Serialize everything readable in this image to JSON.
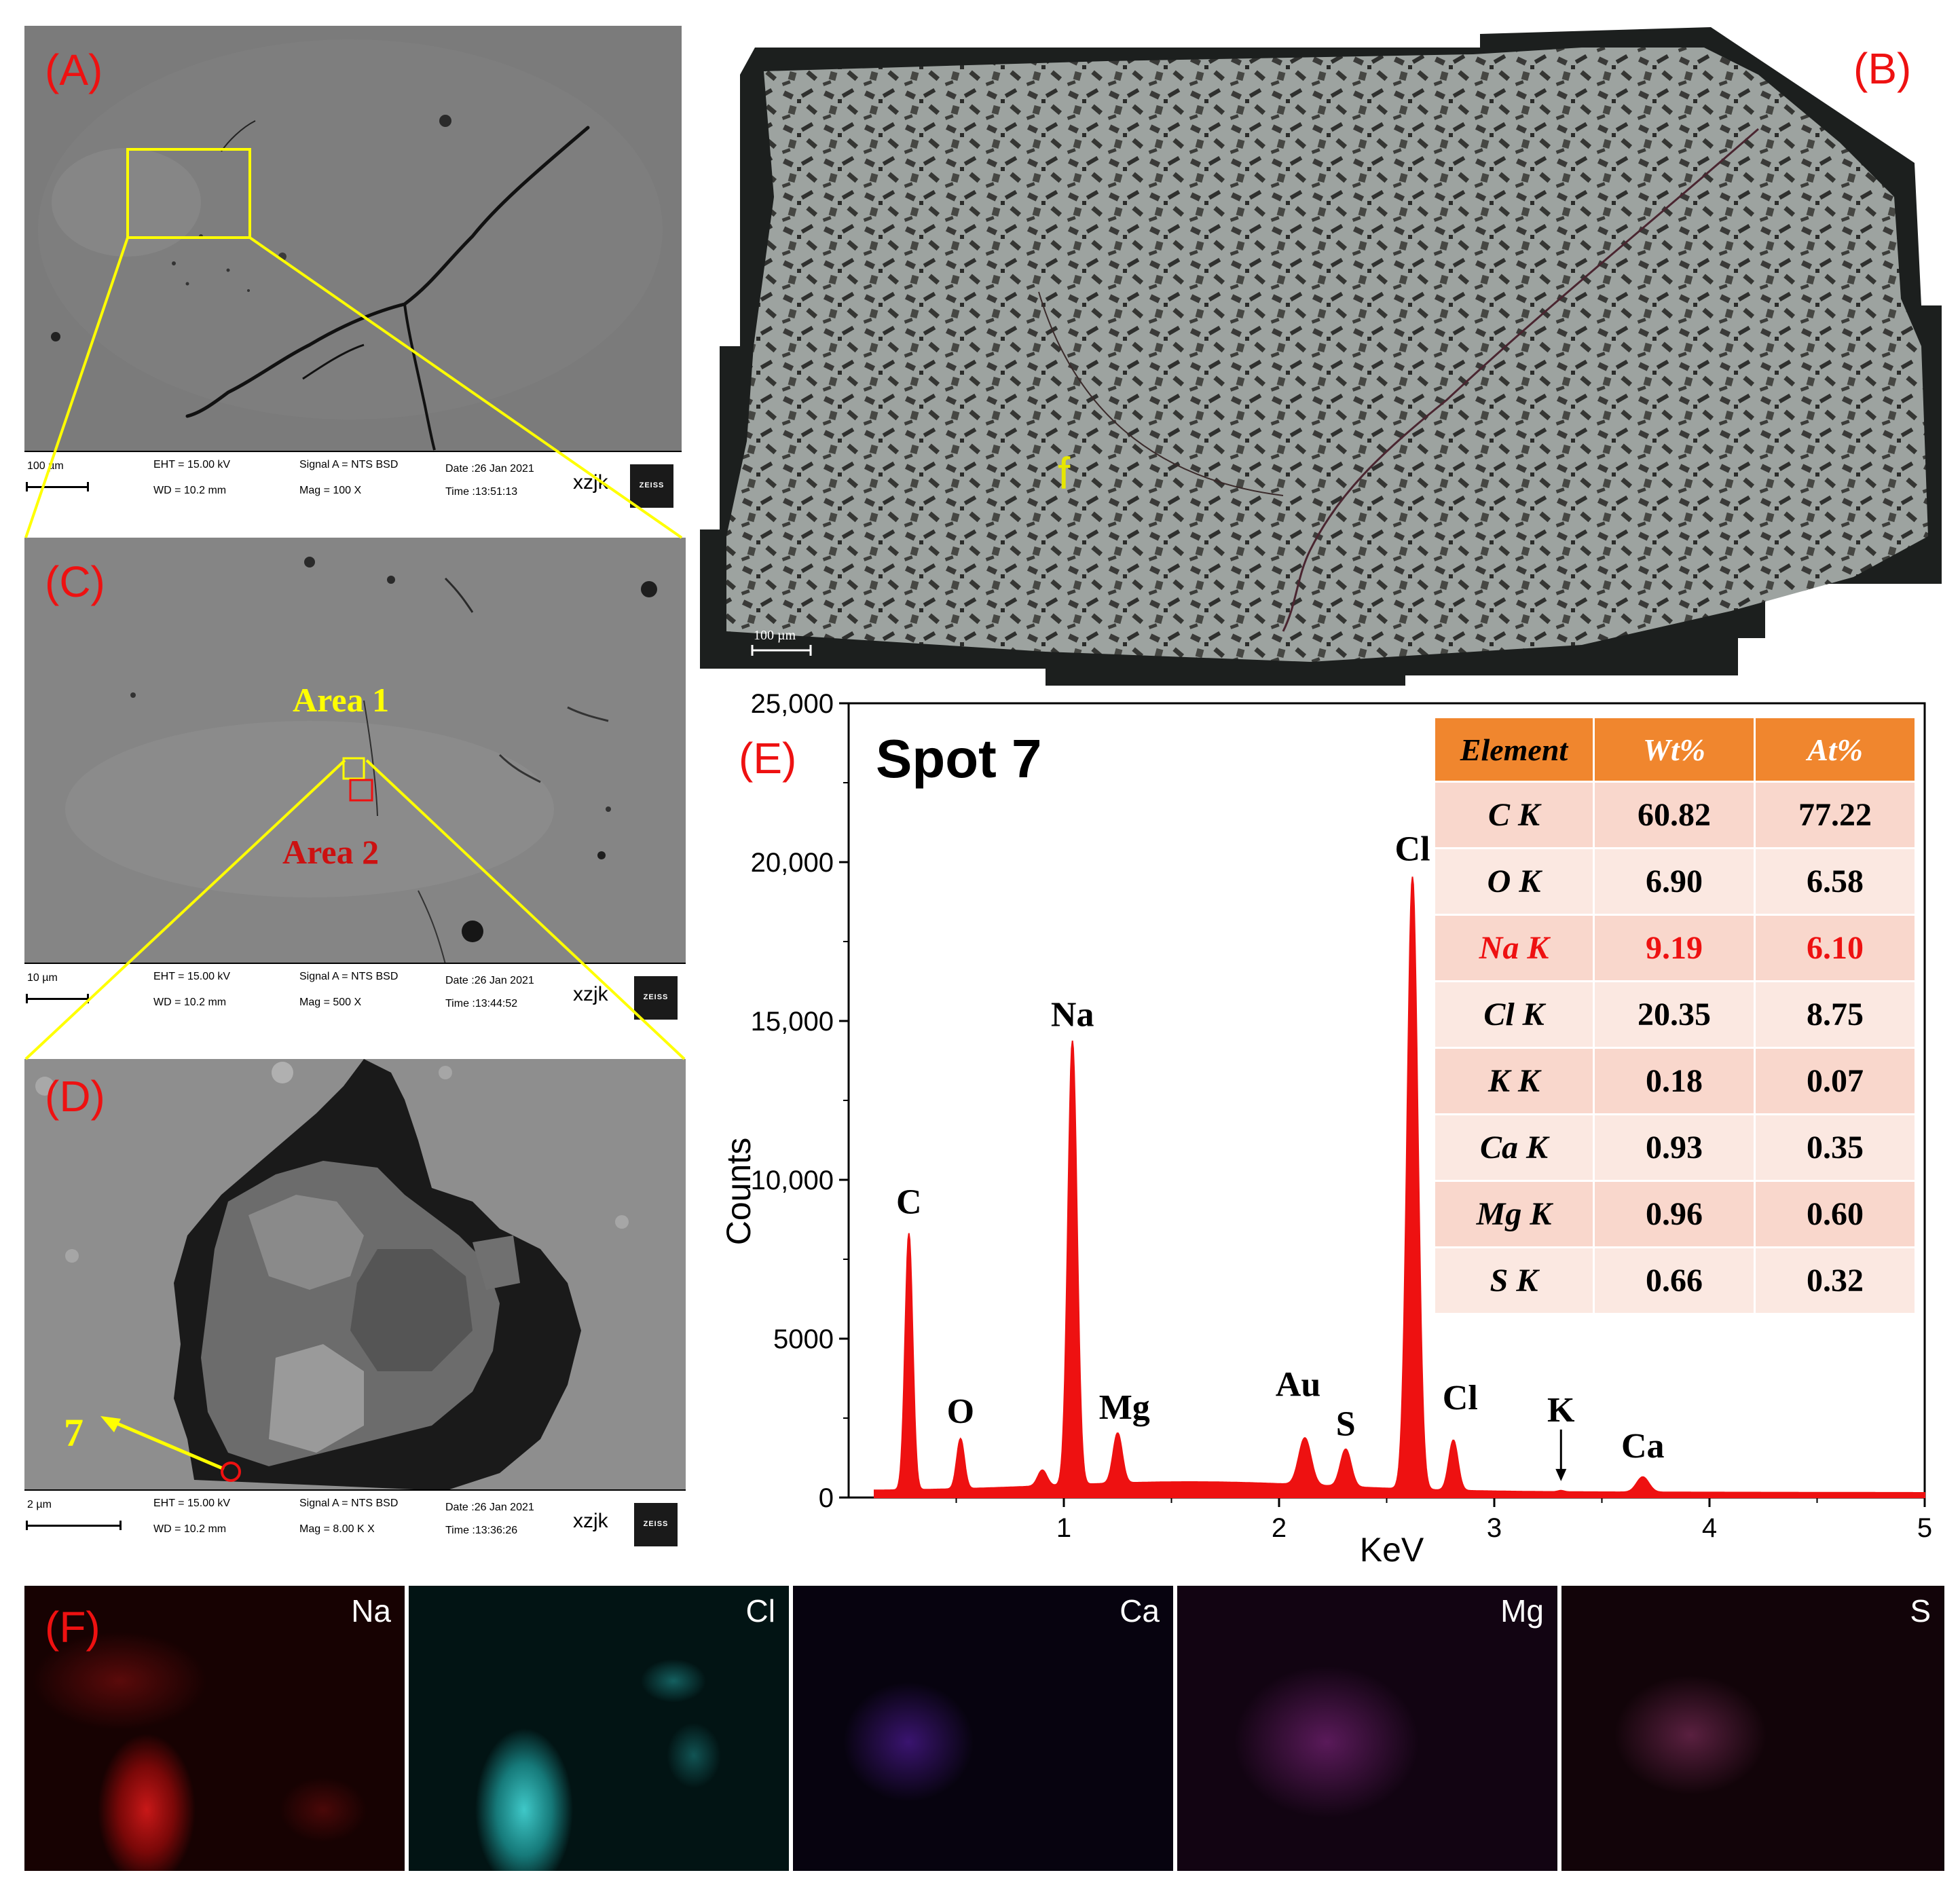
{
  "panels": {
    "A": {
      "label": "(A)",
      "databar": {
        "scale": "100 µm",
        "eht": "EHT = 15.00 kV",
        "wd": "WD = 10.2 mm",
        "signal": "Signal A = NTS BSD",
        "mag": "Mag =   100 X",
        "date": "Date :26 Jan 2021",
        "time": "Time :13:51:13",
        "operator": "xzjk",
        "brand": "ZEISS"
      }
    },
    "B": {
      "label": "(B)",
      "marker": "f",
      "scale": "100 µm"
    },
    "C": {
      "label": "(C)",
      "area1": "Area  1",
      "area2": "Area  2",
      "databar": {
        "scale": "10 µm",
        "eht": "EHT = 15.00 kV",
        "wd": "WD = 10.2 mm",
        "signal": "Signal A = NTS BSD",
        "mag": "Mag =   500 X",
        "date": "Date :26 Jan 2021",
        "time": "Time :13:44:52",
        "operator": "xzjk",
        "brand": "ZEISS"
      }
    },
    "D": {
      "label": "(D)",
      "spot": "7",
      "databar": {
        "scale": "2 µm",
        "eht": "EHT = 15.00 kV",
        "wd": "WD = 10.2 mm",
        "signal": "Signal A = NTS BSD",
        "mag": "Mag =   8.00 K X",
        "date": "Date :26 Jan 2021",
        "time": "Time :13:36:26",
        "operator": "xzjk",
        "brand": "ZEISS"
      }
    },
    "E": {
      "label": "(E)",
      "spot_title": "Spot 7"
    },
    "F": {
      "label": "(F)",
      "maps": [
        "Na",
        "Cl",
        "Ca",
        "Mg",
        "S"
      ]
    }
  },
  "chart_data": {
    "type": "line",
    "title": "Spot 7",
    "xlabel": "KeV",
    "ylabel": "Counts",
    "xlim": [
      0,
      5
    ],
    "ylim": [
      0,
      25000
    ],
    "x_ticks": [
      "1",
      "2",
      "3",
      "4",
      "5"
    ],
    "y_ticks": [
      "0",
      "5000",
      "10,000",
      "15,000",
      "20,000",
      "25,000"
    ],
    "color": "#ee1111",
    "peaks": [
      {
        "label": "C",
        "x": 0.28,
        "y": 8300
      },
      {
        "label": "O",
        "x": 0.52,
        "y": 1800
      },
      {
        "label": "Na",
        "x": 1.04,
        "y": 14200
      },
      {
        "label": "Mg",
        "x": 1.25,
        "y": 1800
      },
      {
        "label": "Au",
        "x": 2.12,
        "y": 1700
      },
      {
        "label": "S",
        "x": 2.31,
        "y": 1400
      },
      {
        "label": "Cl",
        "x": 2.62,
        "y": 19500
      },
      {
        "label": "Cl",
        "x": 2.81,
        "y": 1800
      },
      {
        "label": "K",
        "x": 3.31,
        "y": 260
      },
      {
        "label": "Ca",
        "x": 3.69,
        "y": 700
      }
    ],
    "table": {
      "headers": [
        "Element",
        "Wt%",
        "At%"
      ],
      "rows": [
        {
          "element": "C K",
          "wt": "60.82",
          "at": "77.22"
        },
        {
          "element": "O K",
          "wt": "6.90",
          "at": "6.58"
        },
        {
          "element": "Na K",
          "wt": "9.19",
          "at": "6.10"
        },
        {
          "element": "Cl K",
          "wt": "20.35",
          "at": "8.75"
        },
        {
          "element": "K K",
          "wt": "0.18",
          "at": "0.07"
        },
        {
          "element": "Ca K",
          "wt": "0.93",
          "at": "0.35"
        },
        {
          "element": "Mg K",
          "wt": "0.96",
          "at": "0.60"
        },
        {
          "element": "S K",
          "wt": "0.66",
          "at": "0.32"
        }
      ],
      "highlight_row": 2,
      "highlight_color": "#ee1111",
      "header_color": "#f0862e"
    }
  }
}
